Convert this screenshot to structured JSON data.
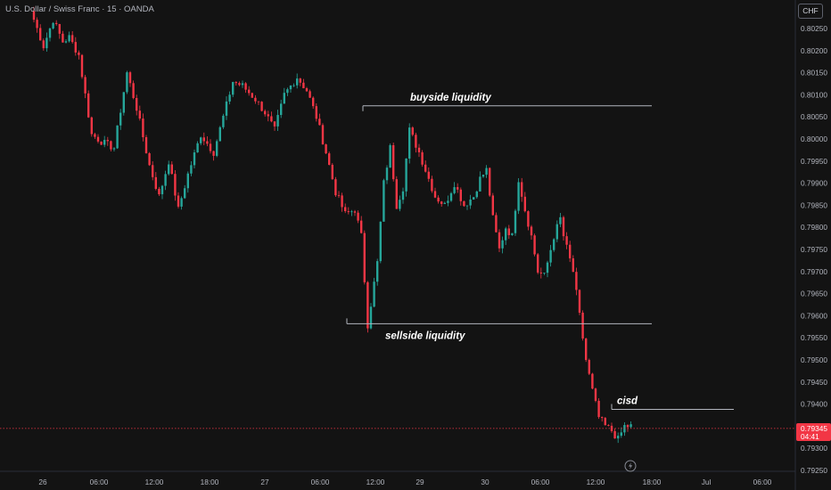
{
  "symbol_title": "U.S. Dollar / Swiss Franc · 15 · OANDA",
  "currency": "CHF",
  "colors": {
    "background": "#131313",
    "bull": "#26a69a",
    "bear": "#f23645",
    "axis_text": "#b2b5be",
    "annotation": "#ffffff",
    "line": "#b2b5be",
    "price_line": "#f23645"
  },
  "price_label": {
    "value": "0.79345",
    "countdown": "04:41"
  },
  "bottom_icon": "lightning-icon",
  "chart_data": {
    "type": "candlestick",
    "title": "U.S. Dollar / Swiss Franc · 15 · OANDA",
    "y_axis": {
      "ticks": [
        "0.80250",
        "0.80200",
        "0.80150",
        "0.80100",
        "0.80050",
        "0.80000",
        "0.79950",
        "0.79900",
        "0.79850",
        "0.79800",
        "0.79750",
        "0.79700",
        "0.79650",
        "0.79600",
        "0.79550",
        "0.79500",
        "0.79450",
        "0.79400",
        "0.79350",
        "0.79300",
        "0.79250"
      ],
      "range": [
        0.7923,
        0.803
      ]
    },
    "x_axis": {
      "ticks": [
        "26",
        "06:00",
        "12:00",
        "18:00",
        "27",
        "06:00",
        "12:00",
        "29",
        "30",
        "06:00",
        "12:00",
        "18:00",
        "Jul",
        "06:00"
      ]
    },
    "close_path": [
      [
        0,
        0.8027
      ],
      [
        3,
        0.8021
      ],
      [
        6,
        0.8027
      ],
      [
        9,
        0.8022
      ],
      [
        11,
        0.8023
      ],
      [
        14,
        0.8019
      ],
      [
        18,
        0.8001
      ],
      [
        22,
        0.7999
      ],
      [
        25,
        0.7998
      ],
      [
        29,
        0.8015
      ],
      [
        32,
        0.8007
      ],
      [
        36,
        0.7994
      ],
      [
        39,
        0.7987
      ],
      [
        42,
        0.7995
      ],
      [
        45,
        0.7984
      ],
      [
        48,
        0.7992
      ],
      [
        52,
        0.8001
      ],
      [
        56,
        0.7997
      ],
      [
        59,
        0.8005
      ],
      [
        62,
        0.8013
      ],
      [
        65,
        0.8012
      ],
      [
        69,
        0.8009
      ],
      [
        72,
        0.8006
      ],
      [
        75,
        0.8002
      ],
      [
        78,
        0.801
      ],
      [
        82,
        0.8014
      ],
      [
        85,
        0.8011
      ],
      [
        88,
        0.8005
      ],
      [
        91,
        0.7997
      ],
      [
        94,
        0.7988
      ],
      [
        97,
        0.7983
      ],
      [
        100,
        0.7984
      ],
      [
        102,
        0.7978
      ],
      [
        104,
        0.7958
      ],
      [
        107,
        0.7972
      ],
      [
        109,
        0.799
      ],
      [
        111,
        0.7998
      ],
      [
        113,
        0.7985
      ],
      [
        115,
        0.7989
      ],
      [
        117,
        0.8002
      ],
      [
        120,
        0.7997
      ],
      [
        122,
        0.7993
      ],
      [
        125,
        0.7987
      ],
      [
        128,
        0.7985
      ],
      [
        131,
        0.799
      ],
      [
        134,
        0.7985
      ],
      [
        137,
        0.7987
      ],
      [
        139,
        0.7991
      ],
      [
        141,
        0.7993
      ],
      [
        143,
        0.7982
      ],
      [
        145,
        0.7975
      ],
      [
        147,
        0.798
      ],
      [
        149,
        0.7978
      ],
      [
        151,
        0.7991
      ],
      [
        153,
        0.7984
      ],
      [
        155,
        0.7978
      ],
      [
        157,
        0.797
      ],
      [
        159,
        0.7969
      ],
      [
        162,
        0.7978
      ],
      [
        164,
        0.7982
      ],
      [
        165,
        0.7978
      ],
      [
        168,
        0.797
      ],
      [
        170,
        0.796
      ],
      [
        172,
        0.795
      ],
      [
        174,
        0.7943
      ],
      [
        176,
        0.7937
      ],
      [
        178,
        0.7935
      ],
      [
        180,
        0.7934
      ],
      [
        182,
        0.7932
      ],
      [
        184,
        0.7935
      ],
      [
        186,
        0.7935
      ]
    ],
    "annotations": [
      {
        "text": "buyside liquidity",
        "level": 0.80075
      },
      {
        "text": "sellside liquidity",
        "level": 0.79582
      },
      {
        "text": "cisd",
        "level": 0.79388
      }
    ]
  }
}
